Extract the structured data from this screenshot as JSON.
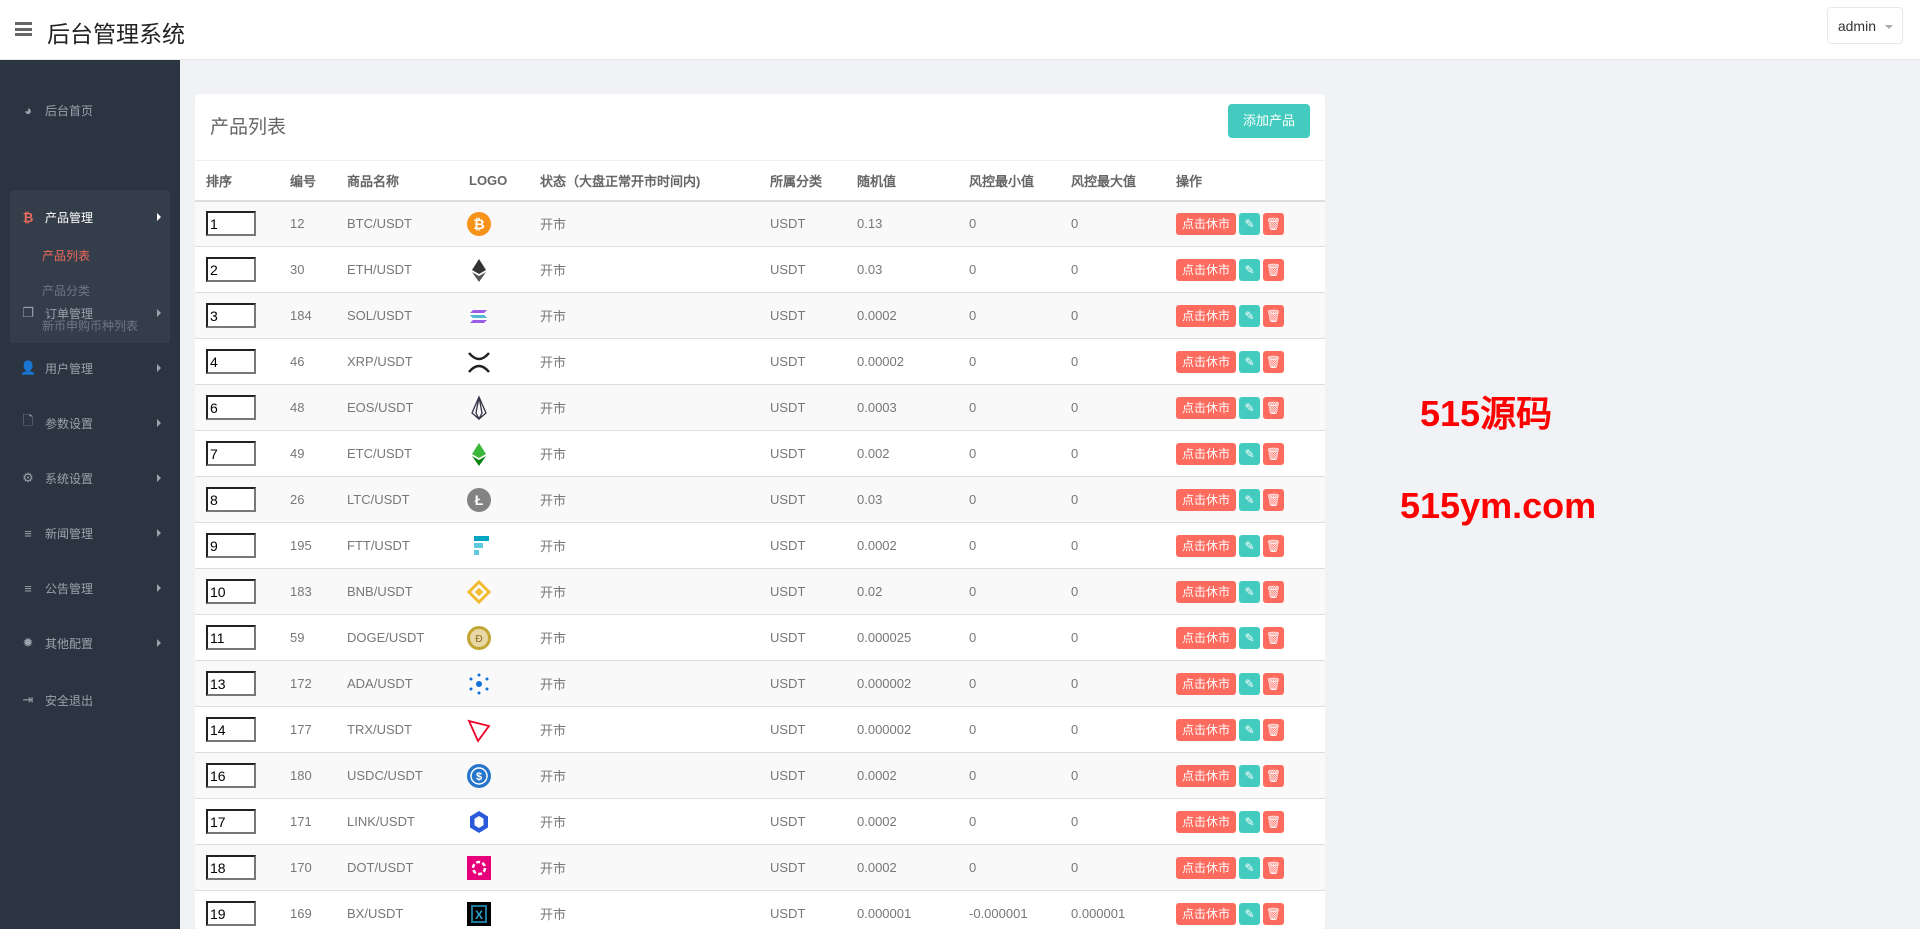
{
  "header": {
    "title": "后台管理系统",
    "user": "admin"
  },
  "sidebar": {
    "home": "后台首页",
    "product_group": {
      "label": "产品管理",
      "items": [
        "产品列表",
        "产品分类",
        "新币申购币种列表"
      ],
      "active": "产品列表"
    },
    "items": [
      {
        "label": "订单管理",
        "icon": "copy-icon"
      },
      {
        "label": "用户管理",
        "icon": "user-icon"
      },
      {
        "label": "参数设置",
        "icon": "file-icon"
      },
      {
        "label": "系统设置",
        "icon": "cogs-icon"
      },
      {
        "label": "新闻管理",
        "icon": "list-icon"
      },
      {
        "label": "公告管理",
        "icon": "list-icon"
      },
      {
        "label": "其他配置",
        "icon": "gear-icon"
      }
    ],
    "logout": "安全退出"
  },
  "card": {
    "title": "产品列表",
    "add_button": "添加产品"
  },
  "table": {
    "columns": [
      "排序",
      "编号",
      "商品名称",
      "LOGO",
      "状态（大盘正常开市时间内)",
      "所属分类",
      "随机值",
      "风控最小值",
      "风控最大值",
      "操作"
    ],
    "action_labels": {
      "rest": "点击休市"
    },
    "rows": [
      [
        "1",
        "12",
        "BTC/USDT",
        "btc",
        "开市",
        "USDT",
        "0.13",
        "0",
        "0"
      ],
      [
        "2",
        "30",
        "ETH/USDT",
        "eth",
        "开市",
        "USDT",
        "0.03",
        "0",
        "0"
      ],
      [
        "3",
        "184",
        "SOL/USDT",
        "sol",
        "开市",
        "USDT",
        "0.0002",
        "0",
        "0"
      ],
      [
        "4",
        "46",
        "XRP/USDT",
        "xrp",
        "开市",
        "USDT",
        "0.00002",
        "0",
        "0"
      ],
      [
        "6",
        "48",
        "EOS/USDT",
        "eos",
        "开市",
        "USDT",
        "0.0003",
        "0",
        "0"
      ],
      [
        "7",
        "49",
        "ETC/USDT",
        "etc",
        "开市",
        "USDT",
        "0.002",
        "0",
        "0"
      ],
      [
        "8",
        "26",
        "LTC/USDT",
        "ltc",
        "开市",
        "USDT",
        "0.03",
        "0",
        "0"
      ],
      [
        "9",
        "195",
        "FTT/USDT",
        "ftt",
        "开市",
        "USDT",
        "0.0002",
        "0",
        "0"
      ],
      [
        "10",
        "183",
        "BNB/USDT",
        "bnb",
        "开市",
        "USDT",
        "0.02",
        "0",
        "0"
      ],
      [
        "11",
        "59",
        "DOGE/USDT",
        "doge",
        "开市",
        "USDT",
        "0.000025",
        "0",
        "0"
      ],
      [
        "13",
        "172",
        "ADA/USDT",
        "ada",
        "开市",
        "USDT",
        "0.000002",
        "0",
        "0"
      ],
      [
        "14",
        "177",
        "TRX/USDT",
        "trx",
        "开市",
        "USDT",
        "0.000002",
        "0",
        "0"
      ],
      [
        "16",
        "180",
        "USDC/USDT",
        "usdc",
        "开市",
        "USDT",
        "0.0002",
        "0",
        "0"
      ],
      [
        "17",
        "171",
        "LINK/USDT",
        "link",
        "开市",
        "USDT",
        "0.0002",
        "0",
        "0"
      ],
      [
        "18",
        "170",
        "DOT/USDT",
        "dot",
        "开市",
        "USDT",
        "0.0002",
        "0",
        "0"
      ],
      [
        "19",
        "169",
        "BX/USDT",
        "bx",
        "开市",
        "USDT",
        "0.000001",
        "-0.000001",
        "0.000001"
      ]
    ]
  },
  "watermark": {
    "line1": "515源码",
    "line2": "515ym.com"
  }
}
